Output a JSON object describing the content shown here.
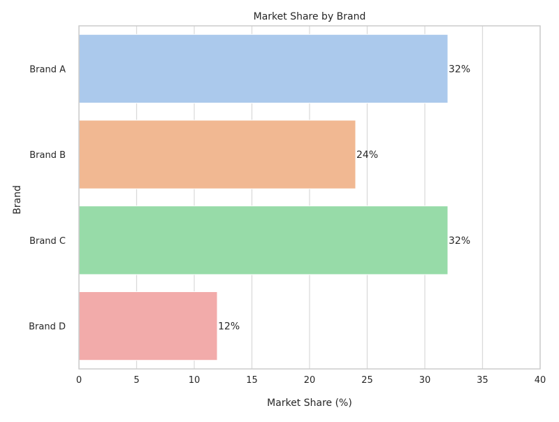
{
  "chart_data": {
    "type": "bar",
    "orientation": "horizontal",
    "title": "Market Share by Brand",
    "xlabel": "Market Share (%)",
    "ylabel": "Brand",
    "categories": [
      "Brand A",
      "Brand B",
      "Brand C",
      "Brand D"
    ],
    "values": [
      32,
      24,
      32,
      12
    ],
    "value_labels": [
      "32%",
      "24%",
      "32%",
      "12%"
    ],
    "colors": [
      "#abc9ec",
      "#f1b892",
      "#97dba8",
      "#f2abaa"
    ],
    "xlim": [
      0,
      40
    ],
    "xticks": [
      0,
      5,
      10,
      15,
      20,
      25,
      30,
      35,
      40
    ],
    "grid": "vertical",
    "legend": "none"
  }
}
